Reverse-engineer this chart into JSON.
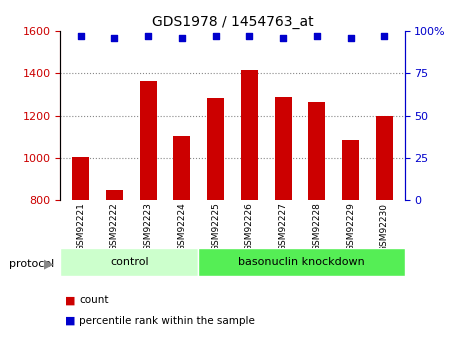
{
  "title": "GDS1978 / 1454763_at",
  "samples": [
    "GSM92221",
    "GSM92222",
    "GSM92223",
    "GSM92224",
    "GSM92225",
    "GSM92226",
    "GSM92227",
    "GSM92228",
    "GSM92229",
    "GSM92230"
  ],
  "counts": [
    1005,
    848,
    1365,
    1105,
    1285,
    1415,
    1290,
    1265,
    1085,
    1200
  ],
  "percentile_ranks": [
    97,
    96,
    97,
    96,
    97,
    97,
    96,
    97,
    96,
    97
  ],
  "bar_color": "#cc0000",
  "dot_color": "#0000cc",
  "ylim_left": [
    800,
    1600
  ],
  "ylim_right": [
    0,
    100
  ],
  "yticks_left": [
    800,
    1000,
    1200,
    1400,
    1600
  ],
  "yticks_right": [
    0,
    25,
    50,
    75,
    100
  ],
  "grid_ticks": [
    1000,
    1200,
    1400
  ],
  "n_control": 4,
  "n_knockdown": 6,
  "control_label": "control",
  "knockdown_label": "basonuclin knockdown",
  "protocol_label": "protocol",
  "legend_count_label": "count",
  "legend_pct_label": "percentile rank within the sample",
  "bar_width": 0.5,
  "sample_bg_color": "#d8d8d8",
  "control_color": "#ccffcc",
  "knockdown_color": "#55ee55",
  "title_fontsize": 10,
  "tick_fontsize": 8,
  "label_fontsize": 8
}
